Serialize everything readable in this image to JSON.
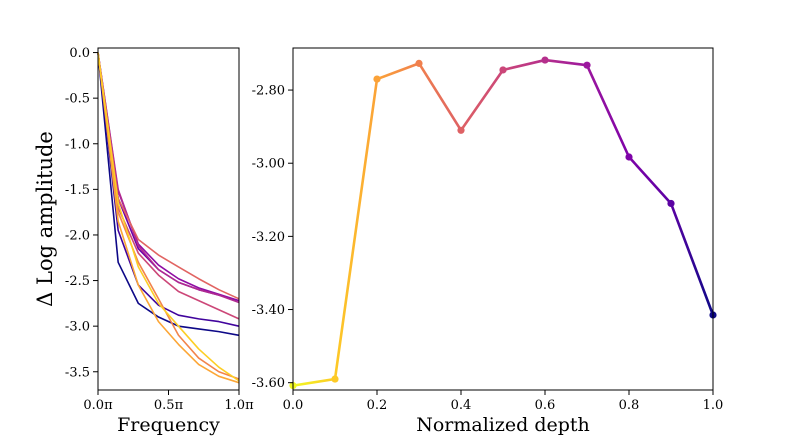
{
  "chart_data": [
    {
      "type": "line",
      "xlabel": "Frequency",
      "ylabel": "Δ Log amplitude",
      "xlim": [
        0,
        1
      ],
      "ylim": [
        -3.7,
        0.05
      ],
      "x_ticks": [
        0,
        0.5,
        1
      ],
      "x_tick_labels": [
        "0.0π",
        "0.5π",
        "1.0π"
      ],
      "y_ticks": [
        0,
        -0.5,
        -1,
        -1.5,
        -2,
        -2.5,
        -3,
        -3.5
      ],
      "y_tick_labels": [
        "0.0",
        "-0.5",
        "-1.0",
        "-1.5",
        "-2.0",
        "-2.5",
        "-3.0",
        "-3.5"
      ],
      "grid": false,
      "x": [
        0,
        0.143,
        0.286,
        0.429,
        0.571,
        0.714,
        0.857,
        1.0
      ],
      "series": [
        {
          "color": "#0d0887",
          "values": [
            0,
            -2.3,
            -2.75,
            -2.9,
            -3.0,
            -3.03,
            -3.06,
            -3.1
          ]
        },
        {
          "color": "#41049d",
          "values": [
            0,
            -1.95,
            -2.55,
            -2.77,
            -2.88,
            -2.92,
            -2.95,
            -3.0
          ]
        },
        {
          "color": "#6a00a8",
          "values": [
            0,
            -1.6,
            -2.15,
            -2.38,
            -2.52,
            -2.6,
            -2.66,
            -2.72
          ]
        },
        {
          "color": "#8f0da4",
          "values": [
            0,
            -1.52,
            -2.1,
            -2.33,
            -2.48,
            -2.58,
            -2.65,
            -2.72
          ]
        },
        {
          "color": "#b12a90",
          "values": [
            0,
            -1.5,
            -2.12,
            -2.38,
            -2.52,
            -2.6,
            -2.66,
            -2.74
          ]
        },
        {
          "color": "#cc4778",
          "values": [
            0,
            -1.7,
            -2.2,
            -2.44,
            -2.62,
            -2.72,
            -2.82,
            -2.92
          ]
        },
        {
          "color": "#e16462",
          "values": [
            0,
            -1.6,
            -2.05,
            -2.22,
            -2.35,
            -2.48,
            -2.6,
            -2.7
          ]
        },
        {
          "color": "#f2844b",
          "values": [
            0,
            -1.75,
            -2.3,
            -2.7,
            -3.1,
            -3.35,
            -3.5,
            -3.58
          ]
        },
        {
          "color": "#fca636",
          "values": [
            0,
            -1.85,
            -2.55,
            -2.95,
            -3.2,
            -3.42,
            -3.55,
            -3.62
          ]
        },
        {
          "color": "#fcce25",
          "values": [
            0,
            -1.65,
            -2.35,
            -2.75,
            -3.0,
            -3.25,
            -3.45,
            -3.6
          ]
        }
      ]
    },
    {
      "type": "line",
      "xlabel": "Normalized depth",
      "ylabel": "",
      "xlim": [
        0,
        1
      ],
      "ylim": [
        -3.62,
        -2.685
      ],
      "x_ticks": [
        0,
        0.2,
        0.4,
        0.6,
        0.8,
        1.0
      ],
      "x_tick_labels": [
        "0.0",
        "0.2",
        "0.4",
        "0.6",
        "0.8",
        "1.0"
      ],
      "y_ticks": [
        -2.8,
        -3.0,
        -3.2,
        -3.4,
        -3.6
      ],
      "y_tick_labels": [
        "-2.80",
        "-3.00",
        "-3.20",
        "-3.40",
        "-3.60"
      ],
      "grid": false,
      "x": [
        0.0,
        0.1,
        0.2,
        0.3,
        0.4,
        0.5,
        0.6,
        0.7,
        0.8,
        0.9,
        1.0
      ],
      "values": [
        -3.608,
        -3.59,
        -2.77,
        -2.727,
        -2.91,
        -2.745,
        -2.718,
        -2.732,
        -2.983,
        -3.11,
        -3.415
      ],
      "colormap": [
        "#f0f921",
        "#fdca26",
        "#fba238",
        "#f0804e",
        "#de6164",
        "#cb4679",
        "#b52f8c",
        "#9c179e",
        "#7e03a8",
        "#5b02a3",
        "#0d0887"
      ]
    }
  ]
}
